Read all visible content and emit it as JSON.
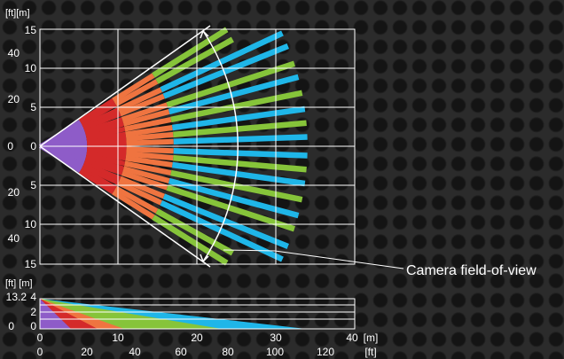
{
  "top_view": {
    "unit_label": "[ft][m]",
    "m_ticks": [
      "15",
      "10",
      "5",
      "0",
      "5",
      "10",
      "15"
    ],
    "ft_ticks": [
      "40",
      "20",
      "0",
      "20",
      "40"
    ]
  },
  "side_view": {
    "unit_label": "[ft] [m]",
    "m_ticks": [
      "4",
      "2",
      "0"
    ],
    "ft_ticks": [
      "13.2",
      "0"
    ]
  },
  "bottom_axis": {
    "m_ticks": [
      "0",
      "10",
      "20",
      "30",
      "40"
    ],
    "m_unit": "[m]",
    "ft_ticks": [
      "0",
      "20",
      "40",
      "60",
      "80",
      "100",
      "120"
    ],
    "ft_unit": "[ft]"
  },
  "annotation": {
    "label": "Camera field-of-view"
  },
  "colors": {
    "background": "#2b2b2b",
    "grid": "#ffffff",
    "red": "#d42a2a",
    "purple": "#8e5cc8",
    "orange": "#ef7440",
    "green": "#86c43a",
    "blue": "#1fb6e8"
  }
}
